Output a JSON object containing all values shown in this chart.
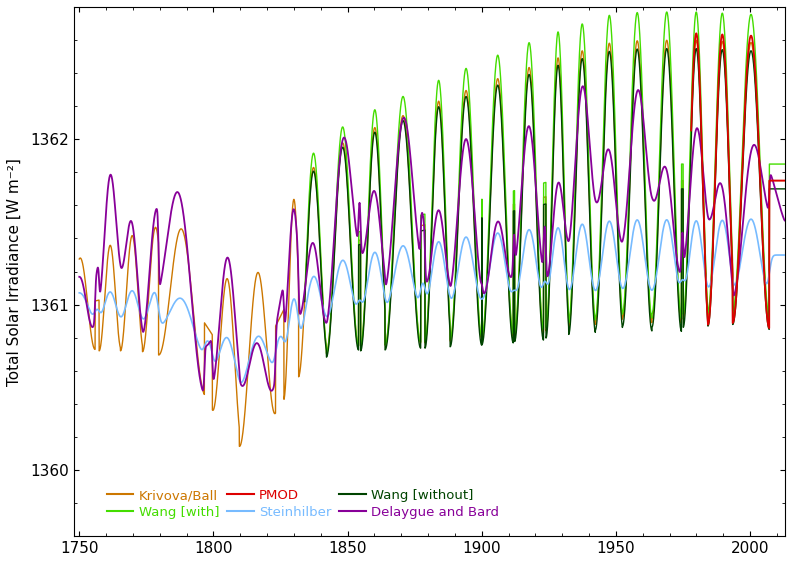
{
  "title": "",
  "ylabel": "Total Solar Irradiance [W m⁻²]",
  "xlabel": "",
  "xlim": [
    1748,
    2013
  ],
  "ylim": [
    1359.6,
    1362.8
  ],
  "yticks": [
    1360,
    1361,
    1362
  ],
  "xticks": [
    1750,
    1800,
    1850,
    1900,
    1950,
    2000
  ],
  "background_color": "#ffffff",
  "series": {
    "krivova": {
      "color": "#cc7700",
      "label": "Krivova/Ball",
      "lw": 1.0
    },
    "steinhilber": {
      "color": "#77bbff",
      "label": "Steinhilber",
      "lw": 1.2
    },
    "delaygue": {
      "color": "#880099",
      "label": "Delaygue and Bard",
      "lw": 1.3
    },
    "wang_with": {
      "color": "#44dd00",
      "label": "Wang [with]",
      "lw": 1.0
    },
    "wang_without": {
      "color": "#004400",
      "label": "Wang [without]",
      "lw": 1.0
    },
    "pmod": {
      "color": "#dd0000",
      "label": "PMOD",
      "lw": 1.3
    }
  }
}
